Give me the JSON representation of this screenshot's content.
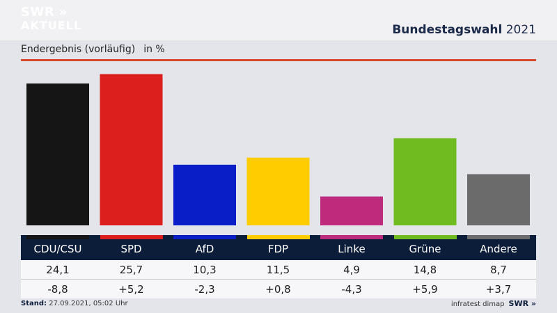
{
  "header": {
    "logo_line1": "SWR »",
    "logo_line2": "AKTUELL",
    "headline_bold": "Bundestagswahl",
    "headline_year": "2021"
  },
  "subtitle": {
    "text": "Endergebnis (vorläufig)",
    "unit": "in %"
  },
  "chart_data": {
    "type": "bar",
    "title": "Bundestagswahl 2021",
    "subtitle": "Endergebnis (vorläufig)",
    "ylabel": "in %",
    "ylim": [
      0,
      26
    ],
    "categories": [
      "CDU/CSU",
      "SPD",
      "AfD",
      "FDP",
      "Linke",
      "Grüne",
      "Andere"
    ],
    "values": [
      24.1,
      25.7,
      10.3,
      11.5,
      4.9,
      14.8,
      8.7
    ],
    "value_labels": [
      "24,1",
      "25,7",
      "10,3",
      "11,5",
      "4,9",
      "14,8",
      "8,7"
    ],
    "changes": [
      "-8,8",
      "+5,2",
      "-2,3",
      "+0,8",
      "-4,3",
      "+5,9",
      "+3,7"
    ],
    "colors": [
      "#151515",
      "#dc1f1c",
      "#0a1ec8",
      "#ffcc00",
      "#be2a7c",
      "#6fbb20",
      "#6b6b6b"
    ],
    "grid": false,
    "legend": "none"
  },
  "footer": {
    "stand_label": "Stand:",
    "stand_value": "27.09.2021, 05:02 Uhr",
    "source": "infratest dimap",
    "brand": "SWR »"
  }
}
